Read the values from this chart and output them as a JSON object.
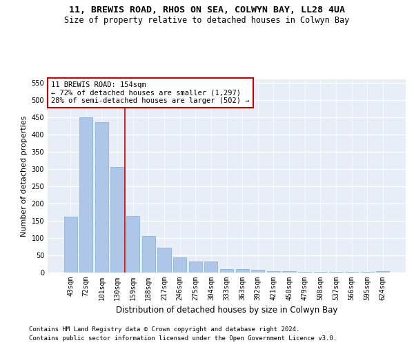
{
  "title_line1": "11, BREWIS ROAD, RHOS ON SEA, COLWYN BAY, LL28 4UA",
  "title_line2": "Size of property relative to detached houses in Colwyn Bay",
  "xlabel": "Distribution of detached houses by size in Colwyn Bay",
  "ylabel": "Number of detached properties",
  "categories": [
    "43sqm",
    "72sqm",
    "101sqm",
    "130sqm",
    "159sqm",
    "188sqm",
    "217sqm",
    "246sqm",
    "275sqm",
    "304sqm",
    "333sqm",
    "363sqm",
    "392sqm",
    "421sqm",
    "450sqm",
    "479sqm",
    "508sqm",
    "537sqm",
    "566sqm",
    "595sqm",
    "624sqm"
  ],
  "values": [
    163,
    450,
    436,
    307,
    165,
    106,
    73,
    45,
    32,
    32,
    10,
    10,
    8,
    4,
    4,
    3,
    2,
    2,
    2,
    2,
    5
  ],
  "bar_color": "#aec6e8",
  "bar_edgecolor": "#7aafd4",
  "vline_x": 3.5,
  "vline_color": "#cc0000",
  "annotation_text": "11 BREWIS ROAD: 154sqm\n← 72% of detached houses are smaller (1,297)\n28% of semi-detached houses are larger (502) →",
  "annotation_box_color": "#cc0000",
  "footer_line1": "Contains HM Land Registry data © Crown copyright and database right 2024.",
  "footer_line2": "Contains public sector information licensed under the Open Government Licence v3.0.",
  "ylim": [
    0,
    560
  ],
  "yticks": [
    0,
    50,
    100,
    150,
    200,
    250,
    300,
    350,
    400,
    450,
    500,
    550
  ],
  "background_color": "#e8eef8",
  "grid_color": "#ffffff",
  "title_fontsize": 9.5,
  "subtitle_fontsize": 8.5,
  "ylabel_fontsize": 8,
  "xlabel_fontsize": 8.5,
  "tick_fontsize": 7,
  "annotation_fontsize": 7.5,
  "footer_fontsize": 6.5
}
